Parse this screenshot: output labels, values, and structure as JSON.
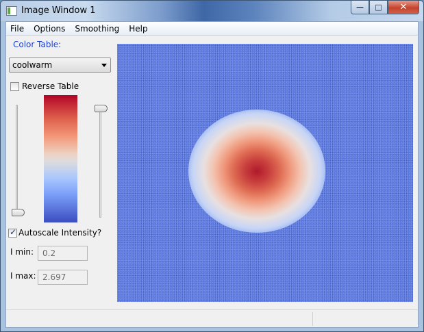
{
  "window": {
    "title": "Image Window 1"
  },
  "menubar": {
    "items": [
      "File",
      "Options",
      "Smoothing",
      "Help"
    ]
  },
  "sidebar": {
    "color_table_label": "Color Table:",
    "colormap_selected": "coolwarm",
    "reverse_table_label": "Reverse Table",
    "reverse_table_checked": false,
    "autoscale_label": "Autoscale Intensity?",
    "autoscale_checked": true,
    "imin_label": "I min:",
    "imin_value": "0.2",
    "imax_label": "I max:",
    "imax_value": "2.697"
  },
  "colors": {
    "accent_label": "#1a3fd0",
    "colormap_top": "#b40426",
    "colormap_mid": "#dddcdc",
    "colormap_bottom": "#3b4cc0",
    "canvas_background": "#5a78dd"
  }
}
